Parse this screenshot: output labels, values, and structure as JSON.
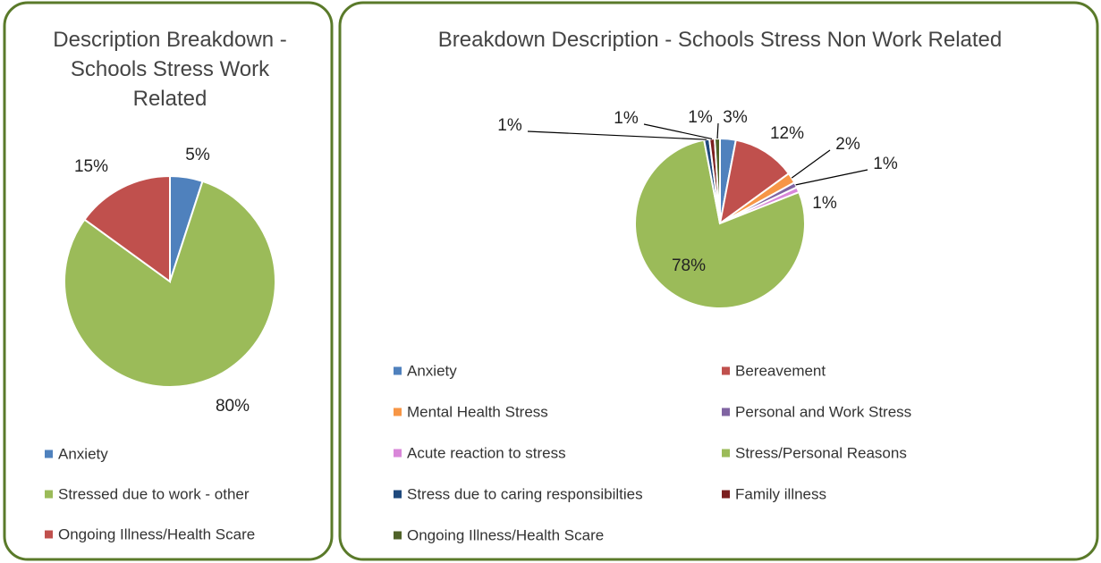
{
  "chart_data": [
    {
      "type": "pie",
      "title": "Description Breakdown - Schools Stress Work Related",
      "categories": [
        "Anxiety",
        "Stressed due to work - other",
        "Ongoing Illness/Health Scare"
      ],
      "values": [
        5,
        80,
        15
      ],
      "value_labels": [
        "5%",
        "80%",
        "15%"
      ],
      "colors": [
        "#4f81bd",
        "#9bbb59",
        "#c0504d"
      ],
      "legend": "bottom"
    },
    {
      "type": "pie",
      "title": "Breakdown Description - Schools Stress Non Work Related",
      "categories": [
        "Anxiety",
        "Bereavement",
        "Mental Health Stress",
        "Personal and Work Stress",
        "Acute reaction to stress",
        "Stress/Personal Reasons",
        "Stress due to caring responsibilties",
        "Family illness",
        "Ongoing Illness/Health Scare"
      ],
      "values": [
        3,
        12,
        2,
        1,
        1,
        78,
        1,
        1,
        1
      ],
      "value_labels": [
        "3%",
        "12%",
        "2%",
        "1%",
        "1%",
        "78%",
        "1%",
        "1%",
        "1%"
      ],
      "colors": [
        "#4f81bd",
        "#c0504d",
        "#f79646",
        "#8064a2",
        "#d987d9",
        "#9bbb59",
        "#1f497d",
        "#7b1f1f",
        "#4f6228"
      ],
      "legend": "bottom"
    }
  ]
}
